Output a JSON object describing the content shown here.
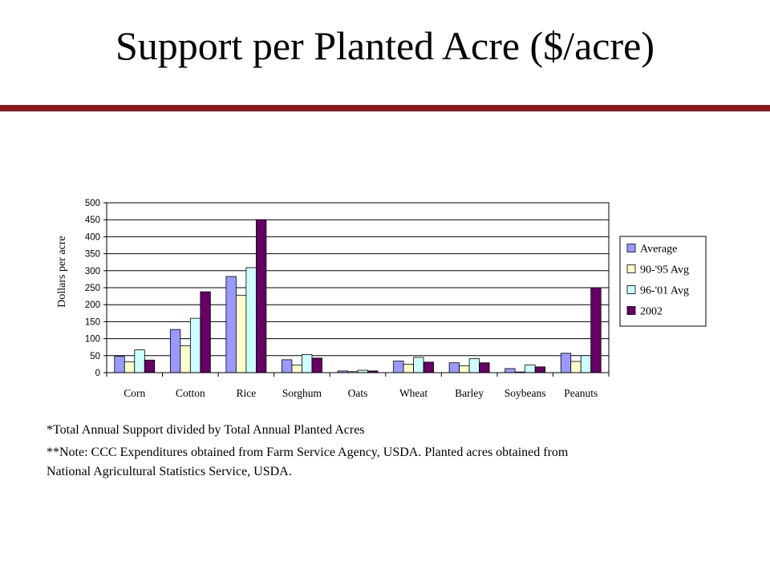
{
  "slide": {
    "title": "Support per Planted Acre ($/acre)",
    "accent_color": "#8B1A1A"
  },
  "notes": [
    "*Total Annual Support divided by Total Annual Planted Acres",
    "**Note:  CCC Expenditures obtained from Farm Service Agency, USDA.  Planted acres obtained from",
    "National Agricultural Statistics Service, USDA."
  ],
  "chart_data": {
    "type": "bar",
    "title": "",
    "xlabel": "",
    "ylabel": "Dollars per acre",
    "ylim": [
      0,
      500
    ],
    "yticks": [
      0,
      50,
      100,
      150,
      200,
      250,
      300,
      350,
      400,
      450,
      500
    ],
    "grid": true,
    "legend_position": "right",
    "categories": [
      "Corn",
      "Cotton",
      "Rice",
      "Sorghum",
      "Oats",
      "Wheat",
      "Barley",
      "Soybeans",
      "Peanuts"
    ],
    "series": [
      {
        "name": "Average",
        "color": "#9999FF",
        "values": [
          48,
          127,
          283,
          38,
          5,
          34,
          29,
          12,
          57
        ]
      },
      {
        "name": "90-'95 Avg",
        "color": "#FFFFCC",
        "values": [
          32,
          79,
          228,
          22,
          3,
          25,
          20,
          2,
          33
        ]
      },
      {
        "name": "96-'01 Avg",
        "color": "#CCFFFF",
        "values": [
          67,
          160,
          309,
          53,
          7,
          45,
          41,
          23,
          50
        ]
      },
      {
        "name": "2002",
        "color": "#660066",
        "values": [
          37,
          238,
          450,
          43,
          5,
          31,
          29,
          17,
          250
        ]
      }
    ]
  }
}
